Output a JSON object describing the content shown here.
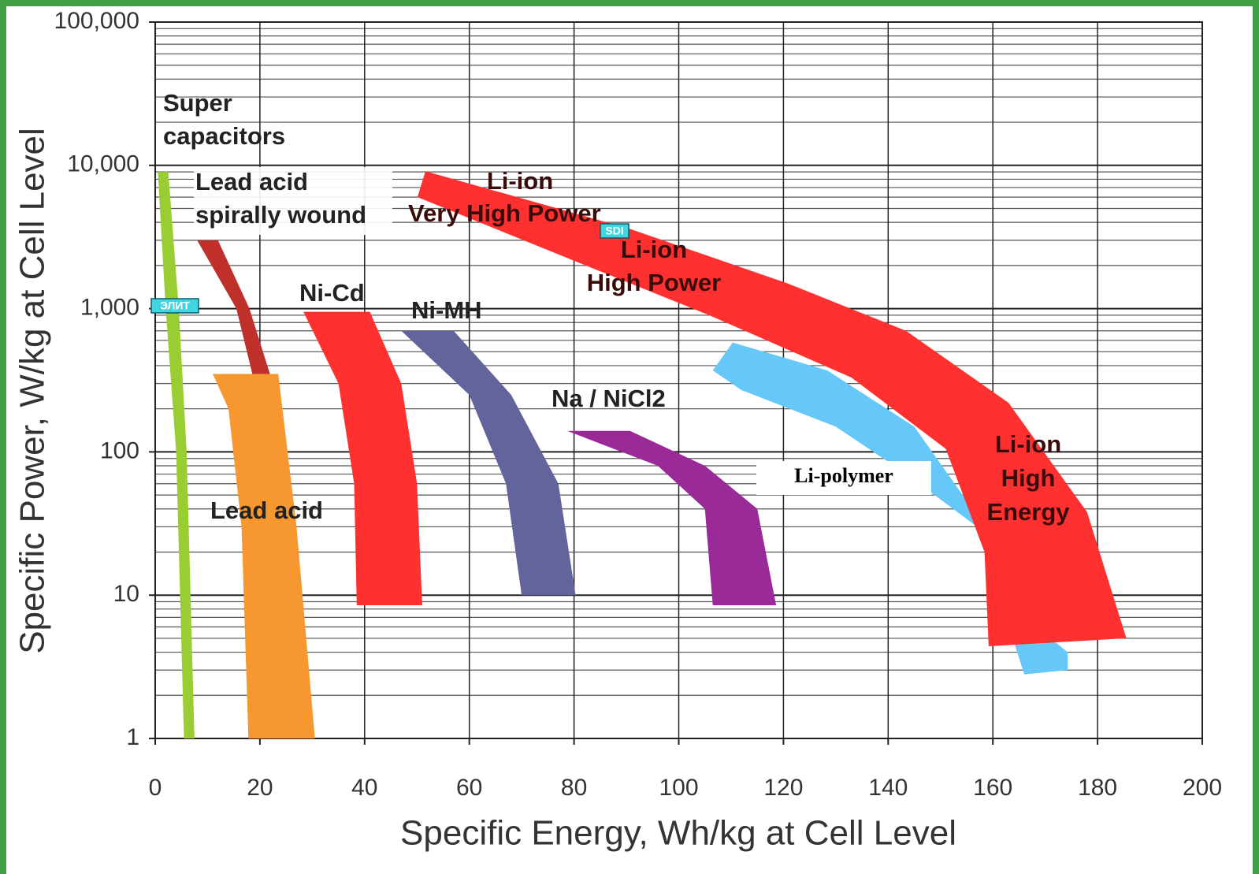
{
  "chart_data": {
    "type": "region",
    "x_label": "Specific Energy, Wh/kg at Cell Level",
    "y_label": "Specific Power, W/kg at Cell Level",
    "xlim": [
      0,
      200
    ],
    "xticks": [
      0,
      20,
      40,
      60,
      80,
      100,
      120,
      140,
      160,
      180,
      200
    ],
    "ylim": [
      1,
      100000
    ],
    "yticks": [
      1,
      10,
      100,
      {
        "value": 1000,
        "label": "1,000"
      },
      {
        "value": 10000,
        "label": "10,000"
      },
      {
        "value": 100000,
        "label": "100,000"
      }
    ],
    "ylog": true,
    "grid": true,
    "series": [
      {
        "color": "#9acd32",
        "labels": [
          [
            "Super",
            "capacitors"
          ]
        ],
        "x": [
          0.5,
          2.5,
          4.5,
          6,
          7.5,
          5.5,
          4,
          2,
          0.5
        ],
        "values": [
          9000,
          9000,
          1000,
          100,
          1,
          1,
          100,
          1000,
          9000
        ]
      },
      {
        "color": "#c0302a",
        "labels": [
          [
            "Lead acid",
            "spirally wound"
          ]
        ],
        "x": [
          8,
          12,
          18,
          22.5,
          22.5,
          19.5,
          19,
          15.5
        ],
        "values": [
          3000,
          3000,
          1000,
          300,
          100,
          100,
          300,
          1000
        ]
      },
      {
        "color": "#f7972f",
        "labels": [
          [
            "Lead acid"
          ]
        ],
        "x": [
          11,
          23.5,
          27,
          30.5,
          17.8,
          16.5,
          14
        ],
        "values": [
          350,
          350,
          30,
          1,
          1,
          30,
          200
        ]
      },
      {
        "color": "#ff3030",
        "labels": [
          [
            "Ni-Cd"
          ]
        ],
        "x": [
          28.3,
          41,
          47,
          50,
          51,
          38.5,
          38,
          35
        ],
        "values": [
          950,
          950,
          300,
          60,
          8.5,
          8.5,
          60,
          300
        ]
      },
      {
        "color": "#64649c",
        "labels": [
          [
            "Ni-MH"
          ]
        ],
        "x": [
          47,
          57,
          68,
          77,
          80.3,
          70,
          67,
          60
        ],
        "values": [
          700,
          700,
          250,
          60,
          10,
          10,
          60,
          250
        ]
      },
      {
        "color": "#9a2a98",
        "labels": [
          [
            "Na / NiCl2"
          ]
        ],
        "x": [
          78.7,
          90.7,
          105,
          115,
          118.6,
          106.5,
          105,
          96
        ],
        "values": [
          140,
          140,
          80,
          40,
          8.5,
          8.5,
          40,
          80
        ]
      },
      {
        "color": "#66c8f8",
        "labels": [
          [
            "Li-polymer"
          ]
        ],
        "x": [
          110.3,
          128.4,
          145,
          155.5,
          166,
          174.3,
          174.3,
          166,
          157,
          143.5,
          130,
          112,
          106.5
        ],
        "values": [
          580,
          370,
          150,
          43,
          7,
          4,
          3,
          2.8,
          30,
          70,
          150,
          270,
          370
        ]
      },
      {
        "color": "#ff3030",
        "labels": [
          [
            "Li-ion",
            "Very High Power"
          ],
          [
            "Li-ion",
            "High Power"
          ],
          [
            "Li-ion",
            "High",
            "Energy"
          ]
        ],
        "x": [
          51.6,
          90.7,
          120.8,
          143.4,
          163,
          178,
          185.5,
          159.2,
          158.4,
          151,
          133,
          105.8,
          75.7,
          50.1
        ],
        "values": [
          9100,
          3600,
          1500,
          700,
          220,
          38,
          5,
          4.4,
          20,
          105,
          330,
          900,
          2500,
          6000
        ]
      }
    ],
    "annotations": [
      "ЭЛИТ",
      "SDI"
    ]
  }
}
